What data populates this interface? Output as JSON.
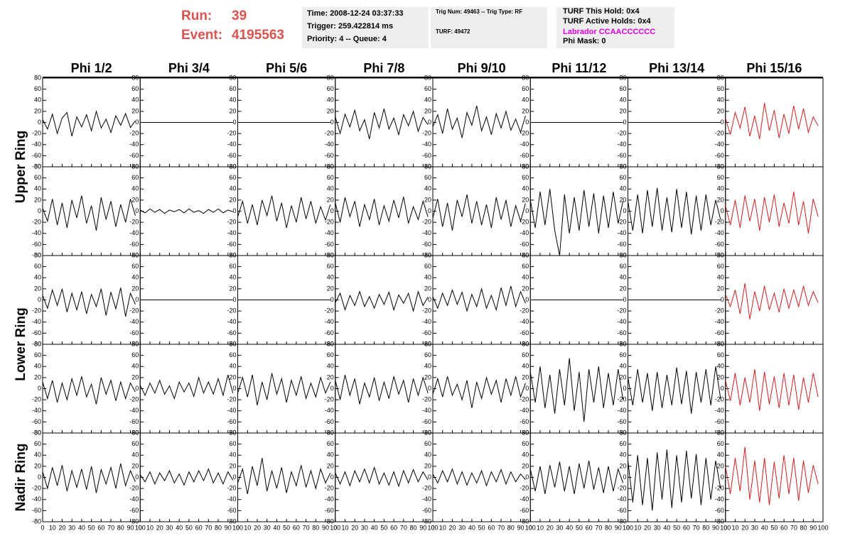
{
  "header": {
    "run_label": "Run:",
    "run": "39",
    "event_label": "Event:",
    "event": "4195563",
    "time": "Time: 2008-12-24 03:37:33",
    "trigger": "Trigger: 259.422814 ms",
    "priority": "Priority: 4 -- Queue: 4",
    "trig_num": "Trig Num: 49463 -- Trig Type: RF",
    "turf": "TURF: 49472",
    "turf_hold": "TURF This Hold: 0x4",
    "turf_active": "TURF Active Holds: 0x4",
    "labrador": "Labrador CCAACCCCCC",
    "phi_mask": "Phi Mask: 0"
  },
  "columns": [
    "Phi 1/2",
    "Phi 3/4",
    "Phi 5/6",
    "Phi 7/8",
    "Phi 9/10",
    "Phi 11/12",
    "Phi 13/14",
    "Phi 15/16"
  ],
  "rings": [
    "Upper Ring",
    "Lower Ring",
    "Nadir Ring"
  ],
  "xlim": [
    0,
    100
  ],
  "ylim": [
    -80,
    80
  ],
  "xticks": [
    0,
    10,
    20,
    30,
    40,
    50,
    60,
    70,
    80,
    90,
    100
  ],
  "yticks": [
    -80,
    -60,
    -40,
    -20,
    0,
    20,
    40,
    60,
    80
  ],
  "x": [
    0,
    5,
    10,
    15,
    20,
    25,
    30,
    35,
    40,
    45,
    50,
    55,
    60,
    65,
    70,
    75,
    80,
    85,
    90,
    95
  ],
  "panels": [
    [
      {
        "color": "#000000",
        "values": [
          5,
          -12,
          15,
          -20,
          8,
          18,
          -25,
          10,
          -8,
          14,
          -15,
          20,
          -10,
          6,
          -18,
          12,
          -5,
          16,
          -9,
          3
        ]
      },
      {
        "color": "#000000",
        "values": [
          0,
          0,
          0,
          0,
          0,
          0,
          0,
          0,
          0,
          0,
          0,
          0,
          0,
          0,
          0,
          0,
          0,
          0,
          0,
          0
        ]
      },
      {
        "color": "#000000",
        "values": [
          0,
          0,
          0,
          0,
          0,
          0,
          0,
          0,
          0,
          0,
          0,
          0,
          0,
          0,
          0,
          0,
          0,
          0,
          0,
          0
        ]
      },
      {
        "color": "#000000",
        "values": [
          10,
          -20,
          15,
          -8,
          22,
          -15,
          5,
          -30,
          18,
          -10,
          25,
          -12,
          8,
          -22,
          14,
          -6,
          20,
          -16,
          9,
          -4
        ]
      },
      {
        "color": "#000000",
        "values": [
          -8,
          14,
          -20,
          25,
          -12,
          8,
          -28,
          18,
          -5,
          30,
          -15,
          10,
          -22,
          16,
          -10,
          20,
          -14,
          6,
          -18,
          12
        ]
      },
      {
        "color": "#000000",
        "values": [
          0,
          0,
          0,
          0,
          0,
          0,
          0,
          0,
          0,
          0,
          0,
          0,
          0,
          0,
          0,
          0,
          0,
          0,
          0,
          0
        ]
      },
      {
        "color": "#000000",
        "values": [
          0,
          0,
          0,
          0,
          0,
          0,
          0,
          0,
          0,
          0,
          0,
          0,
          0,
          0,
          0,
          0,
          0,
          0,
          0,
          0
        ]
      },
      {
        "color": "#cc2020",
        "values": [
          8,
          -22,
          18,
          -10,
          28,
          -25,
          12,
          -30,
          35,
          -15,
          22,
          -28,
          15,
          -20,
          30,
          -12,
          25,
          -18,
          10,
          -6
        ]
      }
    ],
    [
      {
        "color": "#000000",
        "values": [
          5,
          -18,
          22,
          -25,
          15,
          -30,
          20,
          -12,
          28,
          -22,
          10,
          -35,
          25,
          -15,
          18,
          -28,
          12,
          -20,
          22,
          -8
        ]
      },
      {
        "color": "#000000",
        "values": [
          2,
          -3,
          4,
          -2,
          3,
          -4,
          2,
          -1,
          3,
          -3,
          4,
          -2,
          1,
          -4,
          3,
          -2,
          4,
          -3,
          2,
          -1
        ]
      },
      {
        "color": "#000000",
        "values": [
          -10,
          18,
          -22,
          12,
          -25,
          20,
          -8,
          28,
          -18,
          15,
          -30,
          10,
          -20,
          25,
          -14,
          18,
          -22,
          8,
          -16,
          12
        ]
      },
      {
        "color": "#000000",
        "values": [
          15,
          -20,
          25,
          -10,
          18,
          -28,
          12,
          -15,
          22,
          -25,
          10,
          -18,
          20,
          -12,
          26,
          -22,
          8,
          -15,
          18,
          -10
        ]
      },
      {
        "color": "#000000",
        "values": [
          -12,
          22,
          -28,
          15,
          -35,
          20,
          -10,
          30,
          -22,
          18,
          -25,
          12,
          -30,
          25,
          -15,
          20,
          -28,
          10,
          -18,
          14
        ]
      },
      {
        "color": "#000000",
        "values": [
          20,
          -30,
          35,
          -25,
          40,
          -35,
          -80,
          30,
          -40,
          25,
          -35,
          38,
          -28,
          32,
          -40,
          28,
          -30,
          35,
          -22,
          18
        ]
      },
      {
        "color": "#000000",
        "values": [
          18,
          -35,
          30,
          -40,
          38,
          -28,
          42,
          -35,
          25,
          -38,
          40,
          -30,
          35,
          -42,
          28,
          -35,
          30,
          -25,
          20,
          -15
        ]
      },
      {
        "color": "#cc2020",
        "values": [
          10,
          -25,
          20,
          -30,
          28,
          -18,
          22,
          -35,
          25,
          -20,
          30,
          -28,
          15,
          -22,
          35,
          -25,
          18,
          -40,
          22,
          -10
        ]
      }
    ],
    [
      {
        "color": "#000000",
        "values": [
          8,
          -15,
          18,
          -10,
          20,
          -22,
          12,
          -18,
          15,
          -25,
          10,
          -12,
          20,
          -28,
          14,
          -16,
          22,
          -30,
          12,
          -8
        ]
      },
      {
        "color": "#000000",
        "values": [
          0,
          0,
          0,
          0,
          0,
          0,
          0,
          0,
          0,
          0,
          0,
          0,
          0,
          0,
          0,
          0,
          0,
          0,
          0,
          0
        ]
      },
      {
        "color": "#000000",
        "values": [
          0,
          0,
          0,
          0,
          0,
          0,
          0,
          0,
          0,
          0,
          0,
          0,
          0,
          0,
          0,
          0,
          0,
          0,
          0,
          0
        ]
      },
      {
        "color": "#000000",
        "values": [
          -5,
          12,
          -18,
          8,
          -10,
          15,
          -12,
          6,
          -15,
          10,
          -8,
          14,
          -18,
          9,
          -6,
          12,
          -20,
          15,
          -10,
          5
        ]
      },
      {
        "color": "#000000",
        "values": [
          6,
          -15,
          12,
          -10,
          18,
          -8,
          14,
          -20,
          10,
          -12,
          20,
          -15,
          8,
          -18,
          22,
          -10,
          25,
          -12,
          15,
          -6
        ]
      },
      {
        "color": "#000000",
        "values": [
          0,
          0,
          0,
          0,
          0,
          0,
          0,
          0,
          0,
          0,
          0,
          0,
          0,
          0,
          0,
          0,
          0,
          0,
          0,
          0
        ]
      },
      {
        "color": "#000000",
        "values": [
          0,
          0,
          0,
          0,
          0,
          0,
          0,
          0,
          0,
          0,
          0,
          0,
          0,
          0,
          0,
          0,
          0,
          0,
          0,
          0
        ]
      },
      {
        "color": "#cc2020",
        "values": [
          10,
          -12,
          18,
          -25,
          30,
          -35,
          15,
          -20,
          25,
          -18,
          12,
          -22,
          20,
          -15,
          18,
          -12,
          25,
          -10,
          15,
          -5
        ]
      }
    ],
    [
      {
        "color": "#000000",
        "values": [
          12,
          -18,
          15,
          -25,
          10,
          -20,
          18,
          -12,
          22,
          -15,
          8,
          -28,
          20,
          -10,
          15,
          -22,
          12,
          -18,
          10,
          -6
        ]
      },
      {
        "color": "#000000",
        "values": [
          6,
          -12,
          10,
          -8,
          15,
          -10,
          5,
          -18,
          12,
          -6,
          10,
          -14,
          20,
          -8,
          12,
          -10,
          18,
          -12,
          25,
          -8
        ]
      },
      {
        "color": "#000000",
        "values": [
          -8,
          20,
          -15,
          25,
          -30,
          12,
          -20,
          28,
          -10,
          18,
          -25,
          15,
          -12,
          22,
          -18,
          10,
          -15,
          20,
          -8,
          12
        ]
      },
      {
        "color": "#000000",
        "values": [
          15,
          -20,
          25,
          -12,
          18,
          -28,
          10,
          -15,
          20,
          -22,
          12,
          -18,
          22,
          -10,
          15,
          -25,
          18,
          -12,
          20,
          -8
        ]
      },
      {
        "color": "#000000",
        "values": [
          -10,
          18,
          -15,
          22,
          -12,
          8,
          -20,
          15,
          -35,
          12,
          -18,
          20,
          -10,
          15,
          -25,
          18,
          -12,
          22,
          -15,
          10
        ]
      },
      {
        "color": "#000000",
        "values": [
          30,
          -25,
          40,
          -35,
          25,
          -45,
          35,
          -30,
          55,
          -40,
          30,
          -60,
          35,
          -25,
          40,
          -35,
          28,
          -30,
          35,
          -20
        ]
      },
      {
        "color": "#000000",
        "values": [
          20,
          -30,
          35,
          -25,
          28,
          -40,
          30,
          -35,
          25,
          -30,
          38,
          -28,
          32,
          -45,
          30,
          -25,
          35,
          -30,
          40,
          -18
        ]
      },
      {
        "color": "#cc2020",
        "values": [
          15,
          -22,
          28,
          -30,
          20,
          -25,
          35,
          -40,
          30,
          -28,
          22,
          -35,
          28,
          -30,
          25,
          -38,
          20,
          -25,
          28,
          -15
        ]
      }
    ],
    [
      {
        "color": "#000000",
        "values": [
          10,
          -20,
          18,
          -15,
          22,
          -25,
          12,
          -18,
          15,
          -22,
          20,
          -28,
          14,
          -12,
          18,
          -20,
          25,
          -15,
          12,
          -8
        ]
      },
      {
        "color": "#000000",
        "values": [
          5,
          -8,
          10,
          -12,
          8,
          -6,
          12,
          -10,
          6,
          -14,
          10,
          -8,
          12,
          -6,
          15,
          -10,
          8,
          -12,
          10,
          -5
        ]
      },
      {
        "color": "#000000",
        "values": [
          -10,
          15,
          -30,
          20,
          -15,
          35,
          -25,
          12,
          -20,
          18,
          -28,
          10,
          -15,
          22,
          -18,
          12,
          -20,
          15,
          -10,
          8
        ]
      },
      {
        "color": "#000000",
        "values": [
          8,
          -12,
          10,
          -15,
          12,
          -8,
          15,
          -10,
          18,
          -12,
          8,
          -14,
          10,
          -16,
          12,
          -10,
          14,
          -8,
          10,
          -5
        ]
      },
      {
        "color": "#000000",
        "values": [
          6,
          -10,
          12,
          -8,
          15,
          -12,
          10,
          -14,
          8,
          -10,
          12,
          -15,
          10,
          -8,
          14,
          -12,
          10,
          -8,
          6,
          -4
        ]
      },
      {
        "color": "#000000",
        "values": [
          15,
          -25,
          20,
          -30,
          22,
          -18,
          28,
          -25,
          20,
          -30,
          25,
          -20,
          30,
          -22,
          18,
          -28,
          20,
          -25,
          15,
          -10
        ]
      },
      {
        "color": "#000000",
        "values": [
          30,
          -45,
          40,
          -50,
          35,
          -60,
          45,
          -40,
          50,
          -55,
          40,
          -45,
          48,
          -38,
          42,
          -50,
          35,
          -40,
          30,
          -20
        ]
      },
      {
        "color": "#cc2020",
        "values": [
          20,
          -30,
          35,
          -25,
          55,
          -40,
          30,
          -45,
          35,
          -50,
          28,
          -38,
          40,
          -30,
          35,
          -42,
          30,
          -28,
          22,
          -12
        ]
      }
    ]
  ]
}
